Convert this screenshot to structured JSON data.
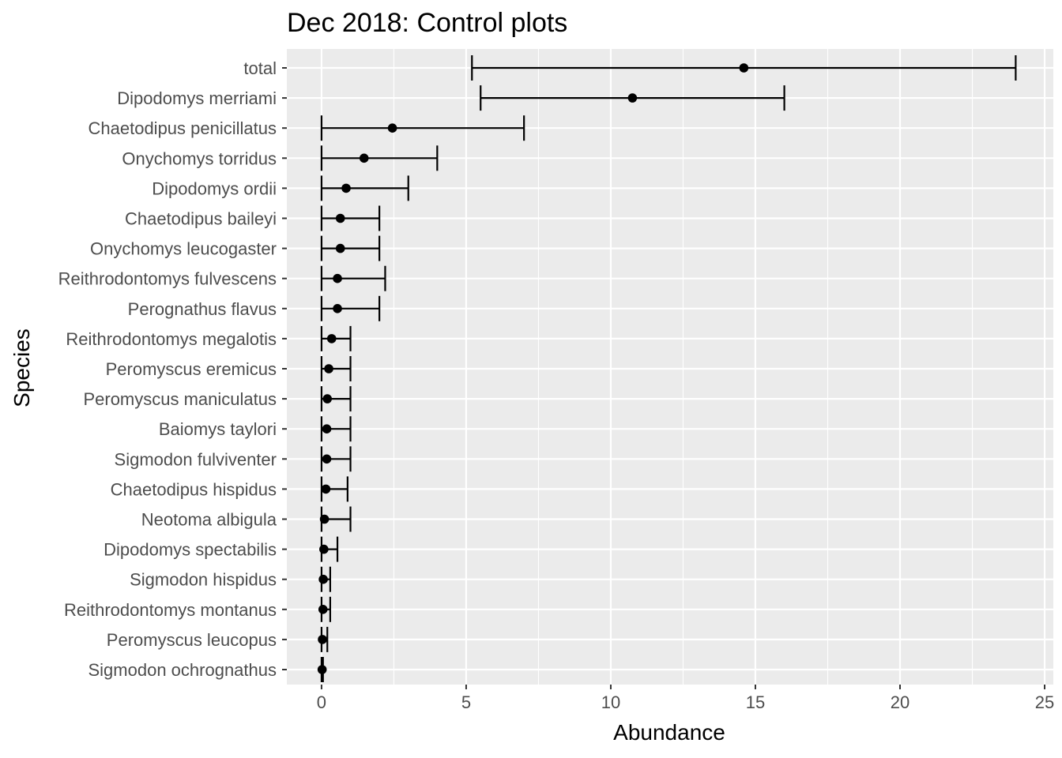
{
  "chart_data": {
    "type": "errorbar",
    "title": "Dec 2018: Control plots",
    "xlabel": "Abundance",
    "ylabel": "Species",
    "xlim": [
      -1.2,
      25.3
    ],
    "xticks": [
      0,
      5,
      10,
      15,
      20,
      25
    ],
    "grid": true,
    "legend": "none",
    "colors": {
      "panel": "#ebebeb",
      "grid": "#ffffff",
      "mark": "#000000",
      "tick_text": "#4d4d4d"
    },
    "categories": [
      "total",
      "Dipodomys merriami",
      "Chaetodipus penicillatus",
      "Onychomys torridus",
      "Dipodomys ordii",
      "Chaetodipus baileyi",
      "Onychomys leucogaster",
      "Reithrodontomys fulvescens",
      "Perognathus flavus",
      "Reithrodontomys megalotis",
      "Peromyscus eremicus",
      "Peromyscus maniculatus",
      "Baiomys taylori",
      "Sigmodon fulviventer",
      "Chaetodipus hispidus",
      "Neotoma albigula",
      "Dipodomys spectabilis",
      "Sigmodon hispidus",
      "Reithrodontomys montanus",
      "Peromyscus leucopus",
      "Sigmodon ochrognathus"
    ],
    "values": [
      14.6,
      10.75,
      2.45,
      1.47,
      0.85,
      0.65,
      0.65,
      0.55,
      0.55,
      0.35,
      0.25,
      0.2,
      0.18,
      0.18,
      0.15,
      0.1,
      0.08,
      0.06,
      0.05,
      0.03,
      0.02
    ],
    "lower": [
      5.2,
      5.5,
      0,
      0,
      0,
      0,
      0,
      0,
      0,
      0,
      0,
      0,
      0,
      0,
      0,
      0,
      0,
      0,
      0,
      0,
      0
    ],
    "upper": [
      24,
      16,
      7,
      4,
      3,
      2,
      2,
      2.2,
      2,
      1,
      1,
      1,
      1,
      1,
      0.9,
      1,
      0.55,
      0.3,
      0.3,
      0.2,
      0.05
    ]
  }
}
